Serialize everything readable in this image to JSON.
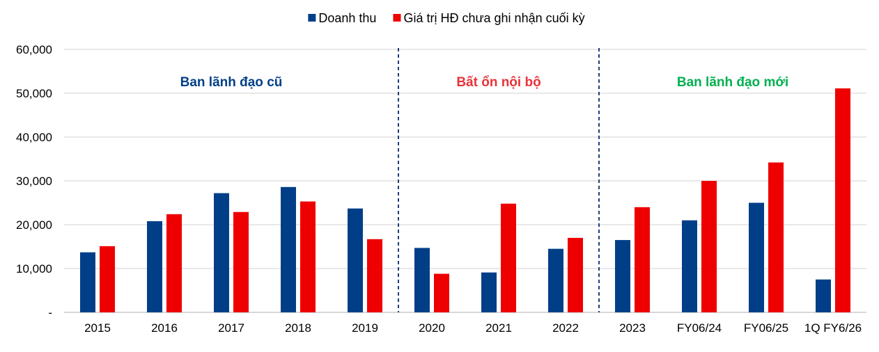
{
  "chart_data": {
    "type": "bar",
    "title": "",
    "xlabel": "",
    "ylabel": "",
    "ylim": [
      0,
      60000
    ],
    "y_ticks": [
      0,
      10000,
      20000,
      30000,
      40000,
      50000,
      60000
    ],
    "y_tick_labels": [
      "-",
      "10,000",
      "20,000",
      "30,000",
      "40,000",
      "50,000",
      "60,000"
    ],
    "grid": true,
    "legend_position": "top-center",
    "categories": [
      "2015",
      "2016",
      "2017",
      "2018",
      "2019",
      "2020",
      "2021",
      "2022",
      "2023",
      "FY06/24",
      "FY06/25",
      "1Q FY6/26"
    ],
    "series": [
      {
        "name": "Doanh thu",
        "color": "#003f87",
        "values": [
          13700,
          20800,
          27200,
          28600,
          23700,
          14700,
          9100,
          14500,
          16500,
          21000,
          25000,
          7500
        ]
      },
      {
        "name": "Giá trị HĐ chưa ghi nhận cuối kỳ",
        "color": "#ee0000",
        "values": [
          15100,
          22400,
          22900,
          25300,
          16700,
          8800,
          24800,
          17000,
          24000,
          30000,
          34200,
          51100
        ]
      }
    ],
    "dividers_after": [
      "2019",
      "2022"
    ],
    "divider_color": "#1f3f7a",
    "annotations": [
      {
        "text": "Ban lãnh đạo cũ",
        "from": "2015",
        "to": "2019",
        "color": "#003f87"
      },
      {
        "text": "Bất ổn nội bộ",
        "from": "2020",
        "to": "2022",
        "color": "#e8333a"
      },
      {
        "text": "Ban lãnh đạo mới",
        "from": "2023",
        "to": "1Q FY6/26",
        "color": "#00b050"
      }
    ]
  }
}
